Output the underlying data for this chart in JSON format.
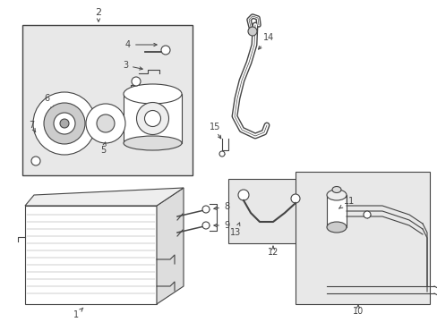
{
  "bg_color": "#ffffff",
  "line_color": "#444444",
  "box_bg": "#e8e8e8",
  "label_fontsize": 7,
  "lw": 0.8
}
